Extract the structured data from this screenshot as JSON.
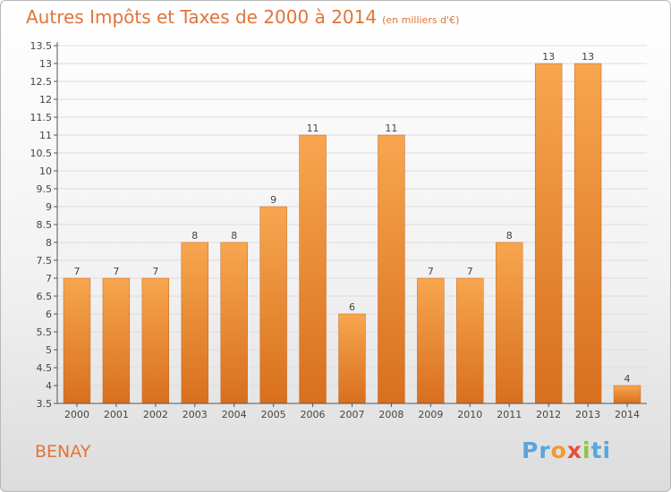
{
  "header": {
    "title": "Autres Impôts et Taxes de 2000 à 2014",
    "subtitle": "(en milliers d'€)"
  },
  "footer": {
    "commune": "BENAY",
    "brand_parts": [
      "Pr",
      "o",
      "x",
      "i",
      "ti"
    ]
  },
  "colors": {
    "bar_top": "#f7a64f",
    "bar_bottom": "#d86f1e",
    "title": "#e0743a",
    "grid": "#dddddd"
  },
  "chart_data": {
    "type": "bar",
    "title": "Autres Impôts et Taxes de 2000 à 2014",
    "subtitle": "(en milliers d'€)",
    "categories": [
      "2000",
      "2001",
      "2002",
      "2003",
      "2004",
      "2005",
      "2006",
      "2007",
      "2008",
      "2009",
      "2010",
      "2011",
      "2012",
      "2013",
      "2014"
    ],
    "values": [
      7,
      7,
      7,
      8,
      8,
      9,
      11,
      6,
      11,
      7,
      7,
      8,
      13,
      13,
      4
    ],
    "labels": [
      "7",
      "7",
      "7",
      "8",
      "8",
      "9",
      "11",
      "6",
      "11",
      "7",
      "7",
      "8",
      "13",
      "13",
      "4"
    ],
    "ylim": [
      3.5,
      13.5
    ],
    "yticks": [
      "3.5",
      "4",
      "4.5",
      "5",
      "5.5",
      "6",
      "6.5",
      "7",
      "7.5",
      "8",
      "8.5",
      "9",
      "9.5",
      "10",
      "10.5",
      "11",
      "11.5",
      "12",
      "12.5",
      "13",
      "13.5"
    ],
    "grid": true,
    "legend": "none"
  }
}
